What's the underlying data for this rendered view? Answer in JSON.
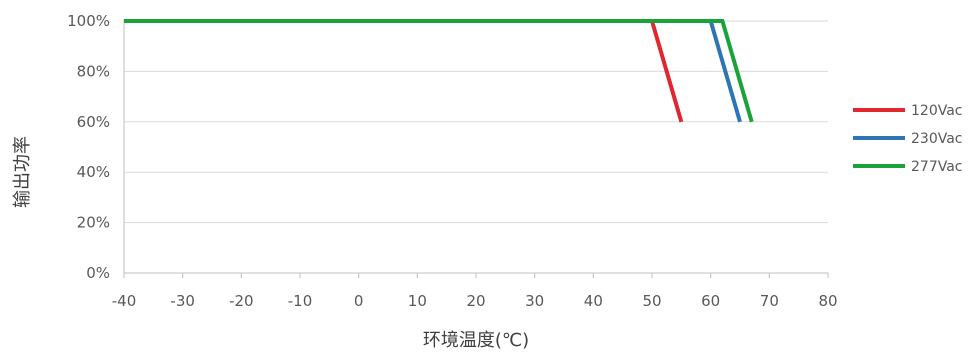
{
  "chart_data": {
    "type": "line",
    "title": "",
    "xlabel": "环境温度(℃)",
    "ylabel": "输出功率",
    "xlim": [
      -40,
      80
    ],
    "ylim": [
      0,
      100
    ],
    "x_ticks": [
      -40,
      -30,
      -20,
      -10,
      0,
      10,
      20,
      30,
      40,
      50,
      60,
      70,
      80
    ],
    "y_ticks": [
      0,
      20,
      40,
      60,
      80,
      100
    ],
    "y_tick_labels": [
      "0%",
      "20%",
      "40%",
      "60%",
      "80%",
      "100%"
    ],
    "grid": "horizontal",
    "legend_position": "right",
    "series": [
      {
        "name": "120Vac",
        "color": "#e0262f",
        "x": [
          -40,
          50,
          55
        ],
        "y": [
          100,
          100,
          60
        ]
      },
      {
        "name": "230Vac",
        "color": "#2e75b6",
        "x": [
          -40,
          60,
          65
        ],
        "y": [
          100,
          100,
          60
        ]
      },
      {
        "name": "277Vac",
        "color": "#1aa33b",
        "x": [
          -40,
          62,
          67
        ],
        "y": [
          100,
          100,
          60
        ]
      }
    ]
  }
}
